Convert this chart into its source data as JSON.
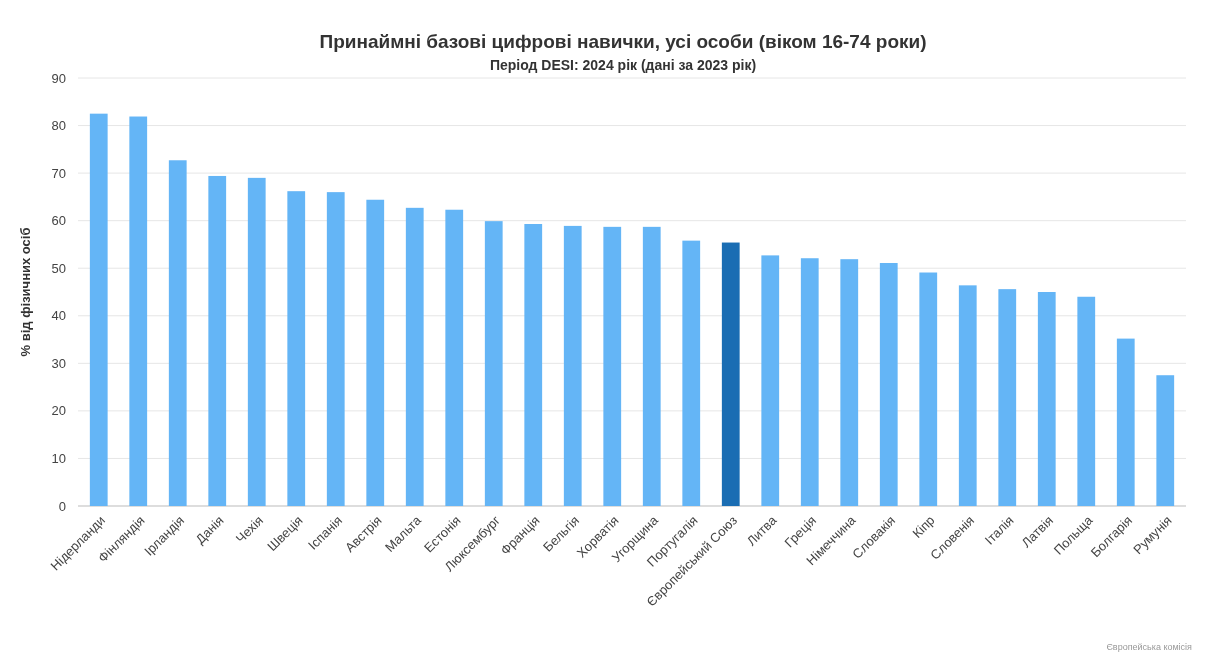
{
  "chart_data": {
    "type": "bar",
    "title": "Принаймні базові цифрові навички, усі особи (віком 16-74 роки)",
    "subtitle": "Період DESI: 2024 рік (дані за 2023 рік)",
    "ylabel": "% від фізичних осіб",
    "categories": [
      "Нідерланди",
      "Фінляндія",
      "Ірландія",
      "Данія",
      "Чехія",
      "Швеція",
      "Іспанія",
      "Австрія",
      "Мальта",
      "Естонія",
      "Люксембург",
      "Франція",
      "Бельгія",
      "Хорватія",
      "Угорщина",
      "Португалія",
      "Європейський Союз",
      "Литва",
      "Греція",
      "Німеччина",
      "Словакія",
      "Кіпр",
      "Словенія",
      "Італія",
      "Латвія",
      "Польща",
      "Болгарія",
      "Румунія"
    ],
    "values": [
      82.5,
      81.9,
      72.7,
      69.4,
      69.0,
      66.2,
      66.0,
      64.4,
      62.7,
      62.3,
      59.9,
      59.3,
      58.9,
      58.7,
      58.7,
      55.8,
      55.4,
      52.7,
      52.1,
      51.9,
      51.1,
      49.1,
      46.4,
      45.6,
      45.0,
      44.0,
      35.2,
      27.5
    ],
    "colors": [
      "#64b5f6",
      "#64b5f6",
      "#64b5f6",
      "#64b5f6",
      "#64b5f6",
      "#64b5f6",
      "#64b5f6",
      "#64b5f6",
      "#64b5f6",
      "#64b5f6",
      "#64b5f6",
      "#64b5f6",
      "#64b5f6",
      "#64b5f6",
      "#64b5f6",
      "#64b5f6",
      "#1a6db3",
      "#64b5f6",
      "#64b5f6",
      "#64b5f6",
      "#64b5f6",
      "#64b5f6",
      "#64b5f6",
      "#64b5f6",
      "#64b5f6",
      "#64b5f6",
      "#64b5f6",
      "#64b5f6"
    ],
    "ylim": [
      0,
      90
    ],
    "yticks": [
      0,
      10,
      20,
      30,
      40,
      50,
      60,
      70,
      80,
      90
    ],
    "grid": "y",
    "annotations": [
      "Європейська комісія"
    ]
  }
}
